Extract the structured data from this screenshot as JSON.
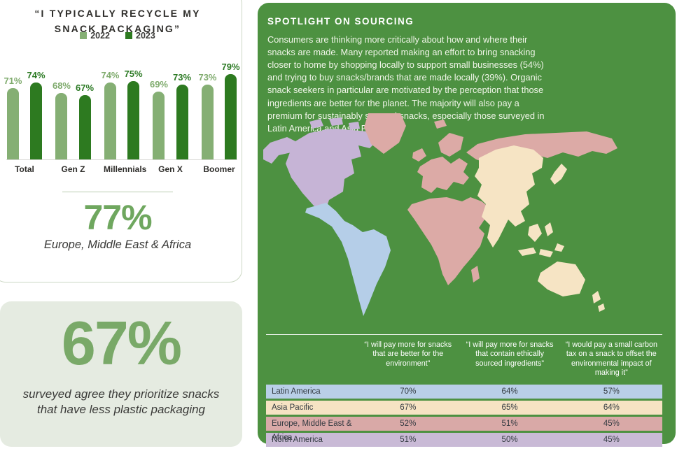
{
  "colors": {
    "panel_green": "#4d9141",
    "bar_2022": "#85af74",
    "bar_2023": "#2d7a20",
    "accent_green": "#6fa75f",
    "card_sage_bg": "#e5ebe1",
    "card_border": "#ccd8c4"
  },
  "chart_data": [
    {
      "type": "bar",
      "title": "“I TYPICALLY RECYCLE MY SNACK PACKAGING”",
      "title_lines": [
        "“I TYPICALLY RECYCLE MY",
        "SNACK PACKAGING”"
      ],
      "categories": [
        "Total",
        "Gen Z",
        "Millennials",
        "Gen X",
        "Boomer"
      ],
      "series": [
        {
          "name": "2022",
          "values": [
            71,
            68,
            74,
            69,
            73
          ],
          "color": "#85af74"
        },
        {
          "name": "2023",
          "values": [
            74,
            67,
            75,
            73,
            79
          ],
          "color": "#2d7a20"
        }
      ],
      "unit": "%",
      "legend_position": "top",
      "ylim": [
        30,
        85
      ],
      "grid": false
    },
    {
      "type": "table",
      "columns": [
        "“I will pay more for snacks that are better for the environment”",
        "“I will pay more for snacks that contain ethically sourced ingredients”",
        "“I would pay a small carbon tax on a snack to offset the environmental impact of making it”"
      ],
      "rows": [
        {
          "region": "Latin America",
          "values": [
            70,
            64,
            57
          ],
          "color": "#b9cfe7"
        },
        {
          "region": "Asia Pacific",
          "values": [
            67,
            65,
            64
          ],
          "color": "#f6e3c3"
        },
        {
          "region": "Europe, Middle East & Africa",
          "values": [
            52,
            51,
            45
          ],
          "color": "#d9a9a7"
        },
        {
          "region": "North America",
          "values": [
            51,
            50,
            45
          ],
          "color": "#c9bad6"
        }
      ],
      "unit": "%"
    }
  ],
  "stats": {
    "emea": {
      "value": "77%",
      "label": "Europe, Middle East & Africa"
    },
    "plastic": {
      "value": "67%",
      "label": "surveyed agree they prioritize snacks that have less plastic packaging"
    }
  },
  "spotlight": {
    "title": "SPOTLIGHT ON SOURCING",
    "body": "Consumers are thinking more critically about how and where their snacks are made. Many reported making an effort to bring snacking closer to home by shopping locally to support small businesses (54%) and trying to buy snacks/brands that are made locally (39%). Organic snack seekers in particular are motivated by the perception that those ingredients are better for the planet. The majority will also pay a premium for sustainably sourced snacks, especially those surveyed in Latin America and Asia Pacific."
  },
  "map": {
    "regions": [
      "North America",
      "Latin America",
      "Europe, Middle East & Africa",
      "Asia Pacific"
    ],
    "region_colors": {
      "north-america": "#c6b4d6",
      "latin-america": "#b5cee8",
      "emea": "#dcaaa6",
      "asia-pacific": "#f6e4c4"
    }
  }
}
